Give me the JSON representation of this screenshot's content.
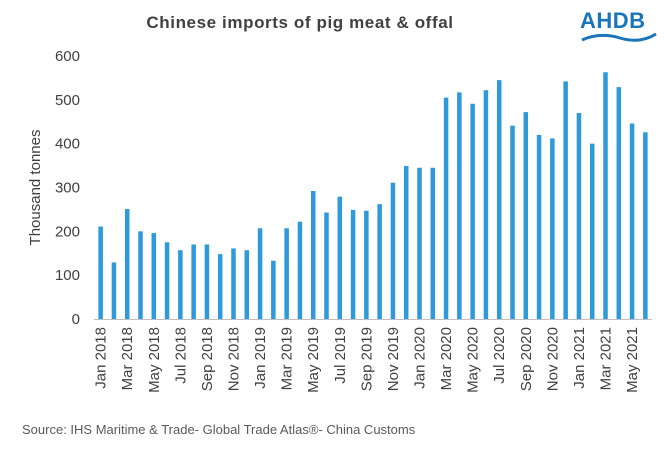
{
  "title": "Chinese imports of pig meat & offal",
  "logo": {
    "text": "AHDB",
    "color": "#1b75bb"
  },
  "source": "Source: IHS Maritime & Trade- Global Trade Atlas®- China Customs",
  "chart_data": {
    "type": "bar",
    "title": "Chinese imports of pig meat & offal",
    "xlabel": "",
    "ylabel": "Thousand tonnes",
    "ylim": [
      0,
      600
    ],
    "yticks": [
      0,
      100,
      200,
      300,
      400,
      500,
      600
    ],
    "grid": false,
    "legend": "none",
    "bar_color": "#2e9ad9",
    "categories": [
      "Jan 2018",
      "Feb 2018",
      "Mar 2018",
      "Apr 2018",
      "May 2018",
      "Jun 2018",
      "Jul 2018",
      "Aug 2018",
      "Sep 2018",
      "Oct 2018",
      "Nov 2018",
      "Dec 2018",
      "Jan 2019",
      "Feb 2019",
      "Mar 2019",
      "Apr 2019",
      "May 2019",
      "Jun 2019",
      "Jul 2019",
      "Aug 2019",
      "Sep 2019",
      "Oct 2019",
      "Nov 2019",
      "Dec 2019",
      "Jan 2020",
      "Feb 2020",
      "Mar 2020",
      "Apr 2020",
      "May 2020",
      "Jun 2020",
      "Jul 2020",
      "Aug 2020",
      "Sep 2020",
      "Oct 2020",
      "Nov 2020",
      "Dec 2020",
      "Jan 2021",
      "Feb 2021",
      "Mar 2021",
      "Apr 2021",
      "May 2021",
      "Jun 2021"
    ],
    "values": [
      211,
      129,
      251,
      200,
      196,
      175,
      157,
      170,
      170,
      148,
      161,
      157,
      207,
      133,
      207,
      222,
      292,
      243,
      279,
      249,
      247,
      262,
      311,
      349,
      345,
      345,
      505,
      517,
      491,
      522,
      545,
      441,
      472,
      420,
      412,
      542,
      470,
      400,
      563,
      529,
      446,
      426
    ],
    "tick_labels": [
      "Jan 2018",
      "Mar 2018",
      "May 2018",
      "Jul 2018",
      "Sep 2018",
      "Nov 2018",
      "Jan 2019",
      "Mar 2019",
      "May 2019",
      "Jul 2019",
      "Sep 2019",
      "Nov 2019",
      "Jan 2020",
      "Mar 2020",
      "May 2020",
      "Jul 2020",
      "Sep 2020",
      "Nov 2020",
      "Jan 2021",
      "Mar 2021",
      "May 2021"
    ]
  }
}
